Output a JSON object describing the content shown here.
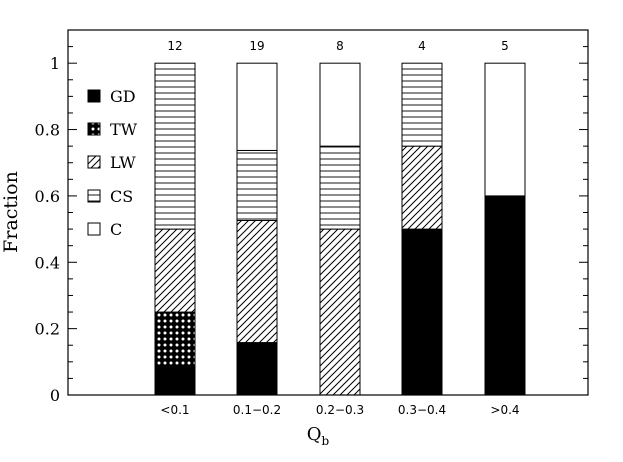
{
  "chart_data": {
    "type": "bar",
    "stacked": true,
    "categories": [
      "<0.1",
      "0.1−0.2",
      "0.2−0.3",
      "0.3−0.4",
      ">0.4"
    ],
    "counts": [
      "12",
      "19",
      "8",
      "4",
      "5"
    ],
    "series": [
      {
        "name": "GD",
        "pattern": "solid-black",
        "values": [
          0.083,
          0.158,
          0.0,
          0.5,
          0.6
        ]
      },
      {
        "name": "TW",
        "pattern": "cross-hatch",
        "values": [
          0.167,
          0.0,
          0.0,
          0.0,
          0.0
        ]
      },
      {
        "name": "LW",
        "pattern": "diagonal-lines",
        "values": [
          0.25,
          0.368,
          0.5,
          0.25,
          0.0
        ]
      },
      {
        "name": "CS",
        "pattern": "horizontal-lines",
        "values": [
          0.5,
          0.211,
          0.25,
          0.25,
          0.0
        ]
      },
      {
        "name": "C",
        "pattern": "white",
        "values": [
          0.0,
          0.263,
          0.25,
          0.0,
          0.4
        ]
      }
    ],
    "xlabel": "Q",
    "xlabel_subscript": "b",
    "ylabel": "Fraction",
    "ylim": [
      0,
      1.1
    ],
    "yticks": [
      "0",
      "0.2",
      "0.4",
      "0.6",
      "0.8",
      "1"
    ],
    "legend_position": "left, inside plot",
    "grid": false
  }
}
